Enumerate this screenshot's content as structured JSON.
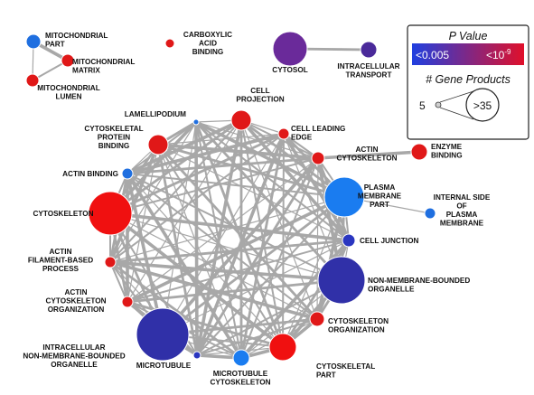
{
  "nodes": [
    {
      "id": "mito_part",
      "label": [
        "MITOCHONDRIAL",
        "PART"
      ],
      "color": "#1f6fe0",
      "size": "small"
    },
    {
      "id": "mito_matrix",
      "label": [
        "MITOCHONDRIAL",
        "MATRIX"
      ],
      "color": "#e01818",
      "size": "small"
    },
    {
      "id": "mito_lumen",
      "label": [
        "MITOCHONDRIAL",
        "LUMEN"
      ],
      "color": "#e01818",
      "size": "small"
    },
    {
      "id": "carboxylic",
      "label": [
        "CARBOXYLIC",
        "ACID",
        "BINDING"
      ],
      "color": "#e01818",
      "size": "small"
    },
    {
      "id": "cytosol",
      "label": [
        "CYTOSOL"
      ],
      "color": "#6a2a9a",
      "size": "medium"
    },
    {
      "id": "intracell_transport",
      "label": [
        "INTRACELLULAR",
        "TRANSPORT"
      ],
      "color": "#4a2a9a",
      "size": "small"
    },
    {
      "id": "cell_projection",
      "label": [
        "CELL",
        "PROJECTION"
      ],
      "color": "#e01818",
      "size": "small"
    },
    {
      "id": "lamellipodium",
      "label": [
        "LAMELLIPODIUM"
      ],
      "color": "#1f6fe0",
      "size": "tiny"
    },
    {
      "id": "cell_leading_edge",
      "label": [
        "CELL LEADING",
        "EDGE"
      ],
      "color": "#e01818",
      "size": "small"
    },
    {
      "id": "cytoskeletal_protein_binding",
      "label": [
        "CYTOSKELETAL",
        "PROTEIN",
        "BINDING"
      ],
      "color": "#e01818",
      "size": "small"
    },
    {
      "id": "enzyme_binding",
      "label": [
        "ENZYME",
        "BINDING"
      ],
      "color": "#e01818",
      "size": "small"
    },
    {
      "id": "actin_binding",
      "label": [
        "ACTIN BINDING"
      ],
      "color": "#1f6fe0",
      "size": "small"
    },
    {
      "id": "actin_cytoskeleton",
      "label": [
        "ACTIN",
        "CYTOSKELETON"
      ],
      "color": "#e01818",
      "size": "small"
    },
    {
      "id": "plasma_membrane_part",
      "label": [
        "PLASMA",
        "MEMBRANE",
        "PART"
      ],
      "color": "#1a7cf0",
      "size": "large"
    },
    {
      "id": "internal_side_pm",
      "label": [
        "INTERNAL SIDE",
        "OF",
        "PLASMA",
        "MEMBRANE"
      ],
      "color": "#1f6fe0",
      "size": "tiny"
    },
    {
      "id": "cytoskeleton",
      "label": [
        "CYTOSKELETON"
      ],
      "color": "#f01010",
      "size": "large"
    },
    {
      "id": "cell_junction",
      "label": [
        "CELL JUNCTION"
      ],
      "color": "#2a36c0",
      "size": "small"
    },
    {
      "id": "actin_filament_process",
      "label": [
        "ACTIN",
        "FILAMENT-BASED",
        "PROCESS"
      ],
      "color": "#e01818",
      "size": "small"
    },
    {
      "id": "non_membrane_organelle",
      "label": [
        "NON-MEMBRANE-BOUNDED",
        "ORGANELLE"
      ],
      "color": "#3030a8",
      "size": "large"
    },
    {
      "id": "actin_cytoskeleton_org",
      "label": [
        "ACTIN",
        "CYTOSKELETON",
        "ORGANIZATION"
      ],
      "color": "#e01818",
      "size": "small"
    },
    {
      "id": "cytoskeleton_org",
      "label": [
        "CYTOSKELETON",
        "ORGANIZATION"
      ],
      "color": "#e01818",
      "size": "small"
    },
    {
      "id": "intracell_non_membrane_organelle",
      "label": [
        "INTRACELLULAR",
        "NON-MEMBRANE-BOUNDED",
        "ORGANELLE"
      ],
      "color": "#3030a8",
      "size": "large"
    },
    {
      "id": "microtubule",
      "label": [
        "MICROTUBULE"
      ],
      "color": "#2a36c0",
      "size": "tiny"
    },
    {
      "id": "microtubule_cytoskeleton",
      "label": [
        "MICROTUBULE",
        "CYTOSKELETON"
      ],
      "color": "#1a7cf0",
      "size": "small"
    },
    {
      "id": "cytoskeletal_part",
      "label": [
        "CYTOSKELETAL",
        "PART"
      ],
      "color": "#f01010",
      "size": "medium"
    }
  ],
  "legend": {
    "pvalue_title": "P Value",
    "pvalue_low": "<0.005",
    "pvalue_high_base": "<10",
    "pvalue_high_exp": "-9",
    "gene_title": "# Gene Products",
    "size_min": "5",
    "size_max": ">35",
    "colors": {
      "low": "#1f3fe0",
      "high": "#e0102a"
    }
  }
}
